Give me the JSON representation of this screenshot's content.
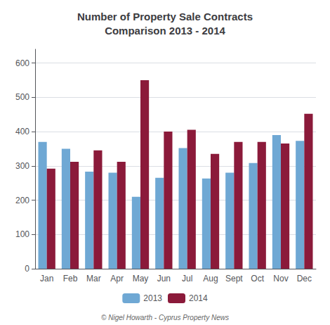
{
  "chart_data": {
    "type": "bar",
    "title": "Number of Property Sale Contracts\nComparison 2013 - 2014",
    "categories": [
      "Jan",
      "Feb",
      "Mar",
      "Apr",
      "May",
      "Jun",
      "Jul",
      "Aug",
      "Sept",
      "Oct",
      "Nov",
      "Dec"
    ],
    "series": [
      {
        "name": "2013",
        "color": "#6fa8d4",
        "values": [
          370,
          350,
          283,
          280,
          210,
          265,
          352,
          263,
          280,
          308,
          390,
          373
        ]
      },
      {
        "name": "2014",
        "color": "#8b1a3a",
        "values": [
          292,
          312,
          345,
          312,
          550,
          400,
          405,
          335,
          370,
          370,
          365,
          452
        ]
      }
    ],
    "ylim": [
      0,
      640
    ],
    "yticks": [
      0,
      100,
      200,
      300,
      400,
      500,
      600
    ],
    "grid": true,
    "legend": "bottom",
    "annotations": [
      "© Nigel Howarth - Cyprus Property News"
    ]
  }
}
